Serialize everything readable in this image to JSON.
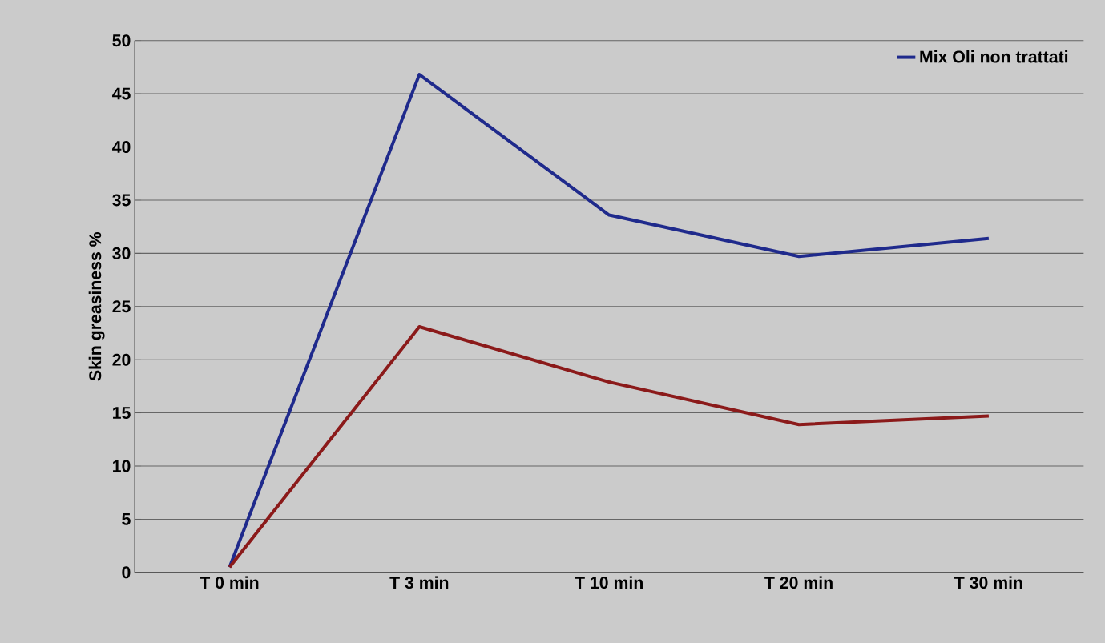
{
  "chart_data": {
    "type": "line",
    "ylabel": "Skin greasiness %",
    "categories": [
      "T 0 min",
      "T 3 min",
      "T 10 min",
      "T 20 min",
      "T 30 min"
    ],
    "series": [
      {
        "name": "Mix Oli non trattati",
        "color": "#1f2a8c",
        "values": [
          0.5,
          46.8,
          33.6,
          29.7,
          31.4
        ]
      },
      {
        "color": "#8b1a1a",
        "values": [
          0.5,
          23.1,
          17.9,
          13.9,
          14.7
        ]
      }
    ],
    "ylim": [
      0,
      50
    ],
    "yticks": [
      0,
      5,
      10,
      15,
      20,
      25,
      30,
      35,
      40,
      45,
      50
    ],
    "grid": "y",
    "legend": "top right",
    "marker": "none",
    "line_style": "solid"
  }
}
